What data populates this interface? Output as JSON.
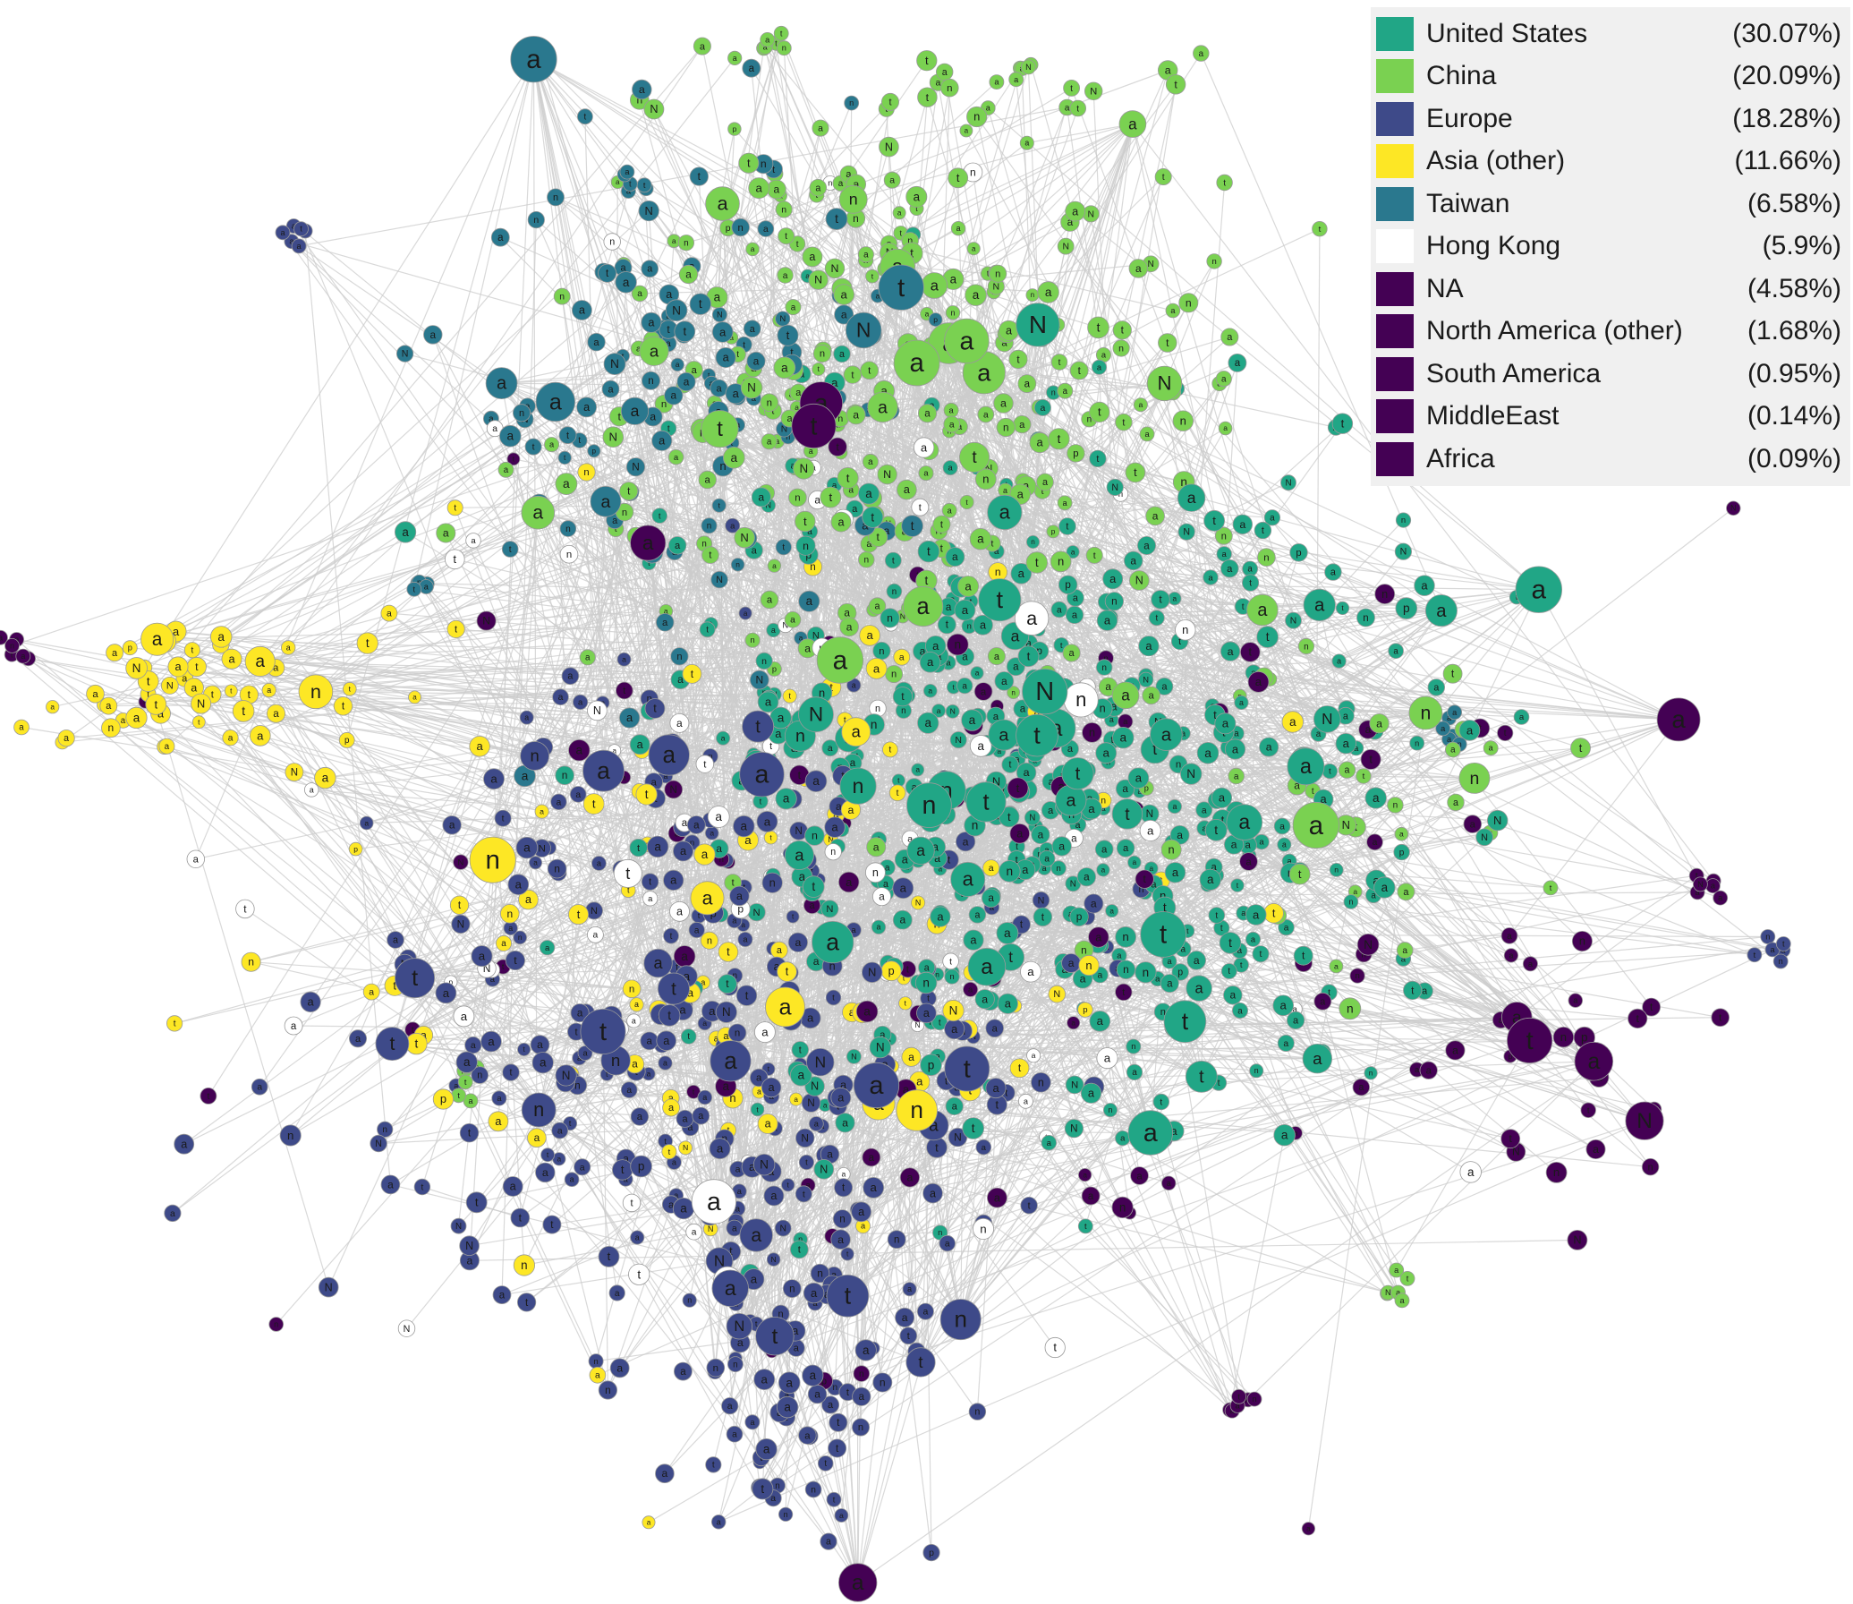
{
  "legend": {
    "items": [
      {
        "label": "United States",
        "pct": "(30.07%)",
        "color": "#21a686"
      },
      {
        "label": "China",
        "pct": "(20.09%)",
        "color": "#7ad151"
      },
      {
        "label": "Europe",
        "pct": "(18.28%)",
        "color": "#3e4a89"
      },
      {
        "label": "Asia (other)",
        "pct": "(11.66%)",
        "color": "#fde725"
      },
      {
        "label": "Taiwan",
        "pct": "(6.58%)",
        "color": "#2a788e"
      },
      {
        "label": "Hong Kong",
        "pct": "(5.9%)",
        "color": "#ffffff"
      },
      {
        "label": "NA",
        "pct": "(4.58%)",
        "color": "#440154"
      },
      {
        "label": "North America (other)",
        "pct": "(1.68%)",
        "color": "#440154"
      },
      {
        "label": "South America",
        "pct": "(0.95%)",
        "color": "#440154"
      },
      {
        "label": "MiddleEast",
        "pct": "(0.14%)",
        "color": "#440154"
      },
      {
        "label": "Africa",
        "pct": "(0.09%)",
        "color": "#440154"
      }
    ]
  },
  "graph": {
    "edge_color": "#cccccc",
    "node_glyphs": [
      "a",
      "t",
      "n",
      "N",
      "p"
    ]
  }
}
